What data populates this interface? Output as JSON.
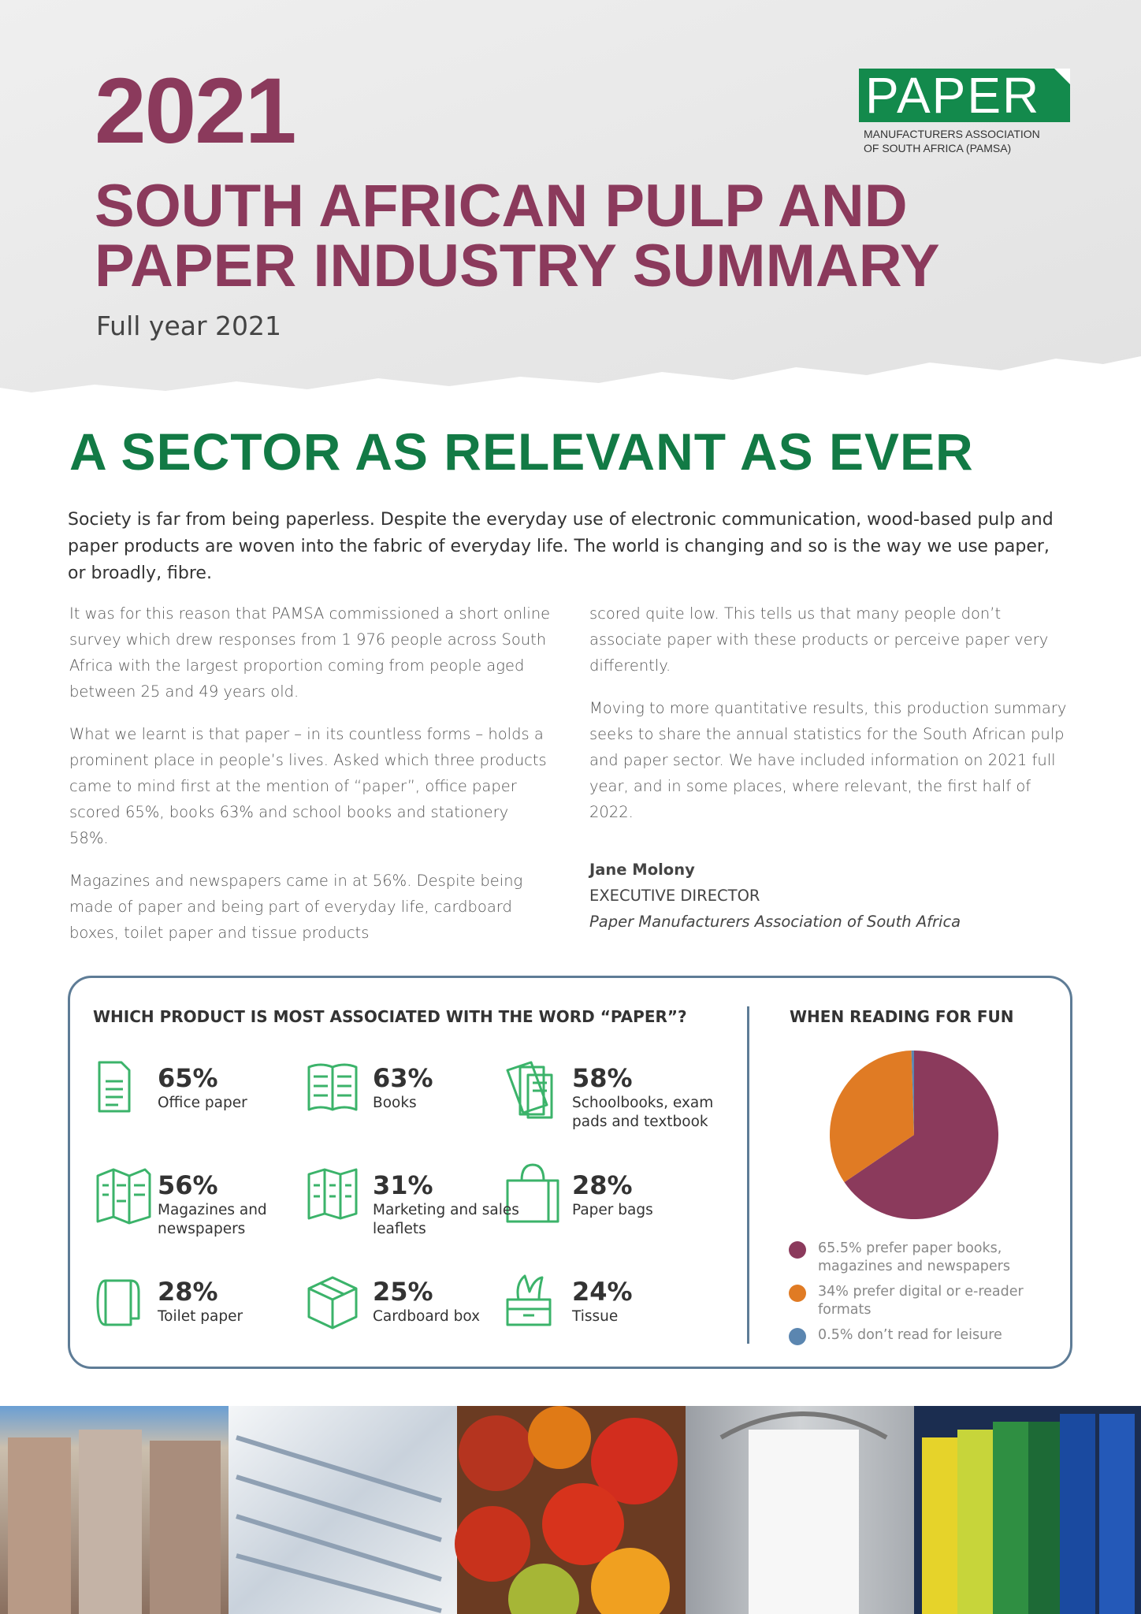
{
  "header": {
    "year": "2021",
    "title_line1": "SOUTH AFRICAN PULP AND",
    "title_line2": "PAPER INDUSTRY SUMMARY",
    "subtitle": "Full year 2021"
  },
  "logo": {
    "word": "PAPER",
    "line1": "MANUFACTURERS ASSOCIATION",
    "line2": "OF SOUTH AFRICA (PAMSA)"
  },
  "section": {
    "heading": "A SECTOR AS RELEVANT AS EVER",
    "lead": "Society is far from being paperless. Despite the everyday use of electronic communication, wood-based pulp and paper products are woven into the fabric of everyday life. The world is changing and so is the way we use paper, or broadly, fibre.",
    "left_paragraphs": [
      "It was for this reason that PAMSA commissioned a short online survey which drew responses from 1 976 people across South Africa with the largest proportion coming from people aged between 25 and 49 years old.",
      "What we learnt is that paper – in its countless forms – holds a prominent place in people’s lives. Asked which three products came to mind first at the mention of “paper”, office paper scored 65%, books 63% and school books and stationery 58%.",
      "Magazines and newspapers came in at 56%. Despite being made of paper and being part of everyday life, cardboard boxes, toilet paper and tissue products"
    ],
    "right_paragraphs": [
      "scored quite low. This tells us that many people don’t associate paper with these products or perceive paper very differently.",
      "Moving to more quantitative results, this production summary seeks to share the annual statistics for the South African pulp and paper sector. We have included information on 2021 full year, and in some places, where relevant, the first half of 2022."
    ],
    "signature": {
      "name": "Jane Molony",
      "role": "EXECUTIVE DIRECTOR",
      "organisation": "Paper Manufacturers Association of South Africa"
    }
  },
  "survey": {
    "title": "WHICH PRODUCT IS MOST ASSOCIATED WITH THE WORD “PAPER”?",
    "items": [
      {
        "value": "65%",
        "label": "Office paper"
      },
      {
        "value": "63%",
        "label": "Books"
      },
      {
        "value": "58%",
        "label": "Schoolbooks, exam pads and textbook"
      },
      {
        "value": "56%",
        "label": "Magazines and newspapers"
      },
      {
        "value": "31%",
        "label": "Marketing and sales leaflets"
      },
      {
        "value": "28%",
        "label": "Paper bags"
      },
      {
        "value": "28%",
        "label": "Toilet paper"
      },
      {
        "value": "25%",
        "label": "Cardboard box"
      },
      {
        "value": "24%",
        "label": "Tissue"
      }
    ]
  },
  "chart_data": {
    "type": "pie",
    "title": "WHEN READING FOR FUN",
    "categories": [
      "65.5% prefer paper books, magazines and newspapers",
      "34% prefer digital or e-reader formats",
      "0.5% don’t read for leisure"
    ],
    "values": [
      65.5,
      34,
      0.5
    ],
    "colors": [
      "#8b3a5c",
      "#e07b24",
      "#5b86b0"
    ]
  }
}
